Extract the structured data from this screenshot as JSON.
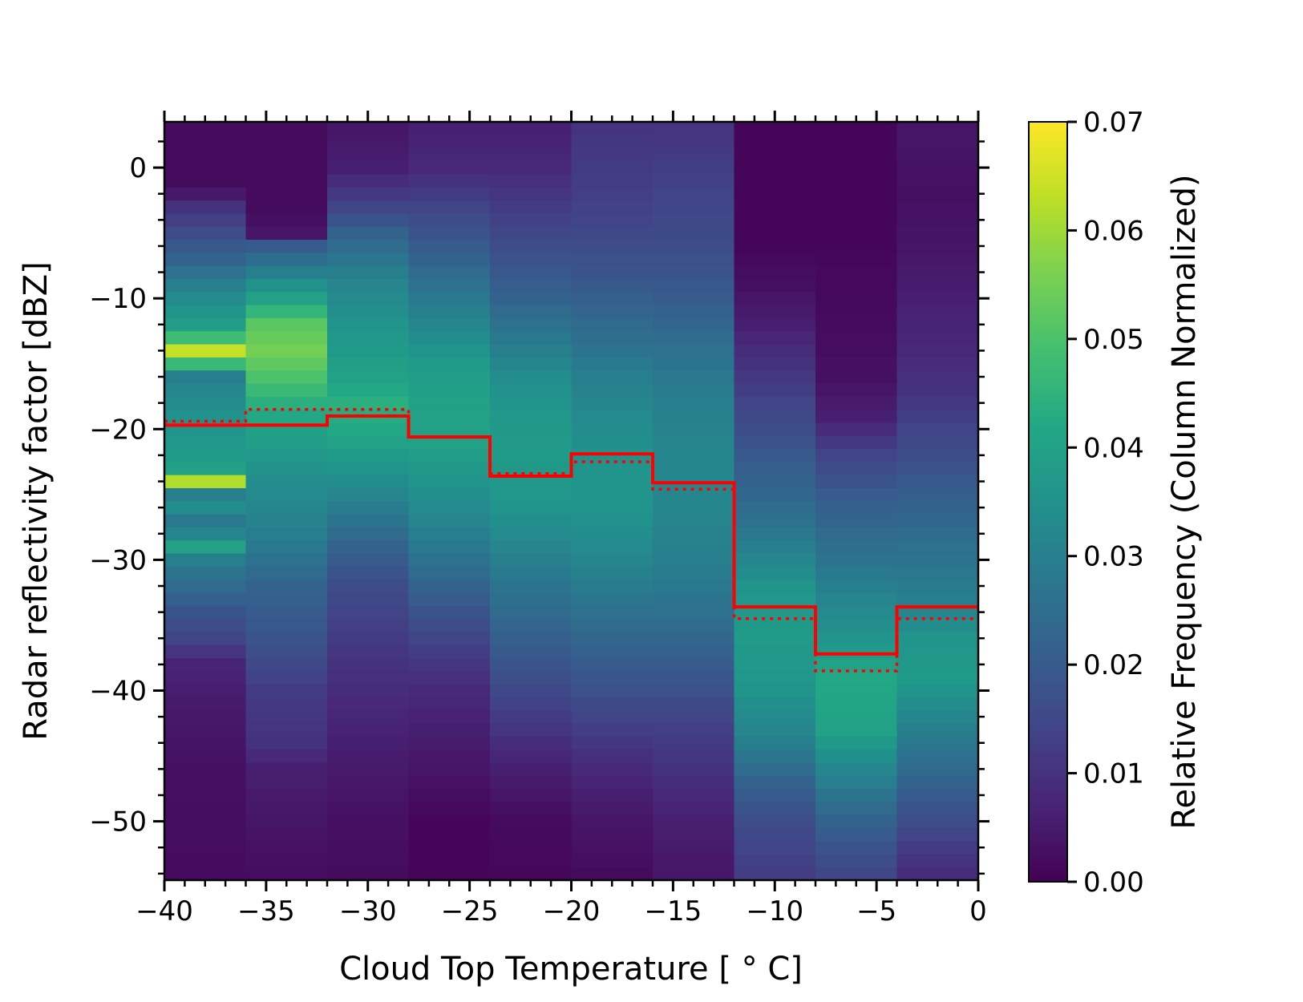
{
  "chart_data": {
    "type": "heatmap",
    "xlabel": "Cloud Top Temperature [$^\\circ$C]",
    "xlabel_display": "Cloud Top Temperature [ ° C]",
    "ylabel": "Radar reflectivity factor [dBZ]",
    "colorbar_label": "Relative Frequency (Column Normalized)",
    "colormap": "viridis",
    "xlim": [
      -40,
      0
    ],
    "ylim": [
      -54.5,
      3.5
    ],
    "x_ticks": [
      -40,
      -35,
      -30,
      -25,
      -20,
      -15,
      -10,
      -5,
      0
    ],
    "x_tick_labels": [
      "−40",
      "−35",
      "−30",
      "−25",
      "−20",
      "−15",
      "−10",
      "−5",
      "0"
    ],
    "y_ticks": [
      -50,
      -40,
      -30,
      -20,
      -10,
      0
    ],
    "y_tick_labels": [
      "−50",
      "−40",
      "−30",
      "−20",
      "−10",
      "0"
    ],
    "colorbar_range": [
      0.0,
      0.07
    ],
    "colorbar_ticks": [
      0.0,
      0.01,
      0.02,
      0.03,
      0.04,
      0.05,
      0.06,
      0.07
    ],
    "colorbar_tick_labels": [
      "0.00",
      "0.01",
      "0.02",
      "0.03",
      "0.04",
      "0.05",
      "0.07"
    ],
    "colorbar_tick_labels_full": [
      "0.00",
      "0.01",
      "0.02",
      "0.03",
      "0.04",
      "0.05",
      "0.06",
      "0.07"
    ],
    "x_bin_edges": [
      -40,
      -36,
      -32,
      -28,
      -24,
      -20,
      -16,
      -12,
      -8,
      -4,
      0
    ],
    "y_bin_edges_start": -54.5,
    "y_bin_width": 1,
    "columns": [
      {
        "x_range": [
          -40,
          -36
        ],
        "profile": [
          [
            -54.5,
            0.002
          ],
          [
            -46,
            0.003
          ],
          [
            -41,
            0.005
          ],
          [
            -38,
            0.007
          ],
          [
            -36,
            0.014
          ],
          [
            -34,
            0.018
          ],
          [
            -32,
            0.024
          ],
          [
            -30,
            0.03
          ],
          [
            -29,
            0.04
          ],
          [
            -28,
            0.032
          ],
          [
            -27,
            0.028
          ],
          [
            -26,
            0.034
          ],
          [
            -25,
            0.03
          ],
          [
            -24,
            0.062
          ],
          [
            -23,
            0.04
          ],
          [
            -22,
            0.038
          ],
          [
            -20,
            0.036
          ],
          [
            -18,
            0.034
          ],
          [
            -16,
            0.03
          ],
          [
            -14,
            0.064
          ],
          [
            -12.5,
            0.04
          ],
          [
            -11,
            0.036
          ],
          [
            -9,
            0.03
          ],
          [
            -7,
            0.022
          ],
          [
            -5,
            0.016
          ],
          [
            -3,
            0.01
          ],
          [
            -1.5,
            0.002
          ],
          [
            3.5,
            0.002
          ]
        ]
      },
      {
        "x_range": [
          -36,
          -32
        ],
        "profile": [
          [
            -54.5,
            0.002
          ],
          [
            -46,
            0.006
          ],
          [
            -44,
            0.01
          ],
          [
            -40,
            0.012
          ],
          [
            -36,
            0.018
          ],
          [
            -32,
            0.022
          ],
          [
            -28,
            0.03
          ],
          [
            -24,
            0.034
          ],
          [
            -20,
            0.04
          ],
          [
            -18,
            0.044
          ],
          [
            -16,
            0.05
          ],
          [
            -14,
            0.055
          ],
          [
            -12,
            0.052
          ],
          [
            -10,
            0.04
          ],
          [
            -8,
            0.03
          ],
          [
            -6,
            0.02
          ],
          [
            -5,
            0.004
          ],
          [
            -3,
            0.002
          ],
          [
            3.5,
            0.002
          ]
        ]
      },
      {
        "x_range": [
          -32,
          -28
        ],
        "profile": [
          [
            -54.5,
            0.002
          ],
          [
            -50,
            0.003
          ],
          [
            -44,
            0.006
          ],
          [
            -38,
            0.01
          ],
          [
            -32,
            0.016
          ],
          [
            -28,
            0.024
          ],
          [
            -24,
            0.034
          ],
          [
            -20,
            0.042
          ],
          [
            -18,
            0.044
          ],
          [
            -16,
            0.04
          ],
          [
            -12,
            0.036
          ],
          [
            -8,
            0.03
          ],
          [
            -5,
            0.022
          ],
          [
            -3,
            0.014
          ],
          [
            0,
            0.006
          ],
          [
            3.5,
            0.004
          ]
        ]
      },
      {
        "x_range": [
          -28,
          -24
        ],
        "profile": [
          [
            -54.5,
            0.001
          ],
          [
            -50,
            0.001
          ],
          [
            -46,
            0.004
          ],
          [
            -40,
            0.008
          ],
          [
            -36,
            0.014
          ],
          [
            -32,
            0.022
          ],
          [
            -28,
            0.03
          ],
          [
            -24,
            0.036
          ],
          [
            -21,
            0.04
          ],
          [
            -18,
            0.04
          ],
          [
            -15,
            0.038
          ],
          [
            -12,
            0.032
          ],
          [
            -9,
            0.026
          ],
          [
            -6,
            0.02
          ],
          [
            -3,
            0.014
          ],
          [
            0,
            0.008
          ],
          [
            3.5,
            0.006
          ]
        ]
      },
      {
        "x_range": [
          -24,
          -20
        ],
        "profile": [
          [
            -54.5,
            0.001
          ],
          [
            -50,
            0.002
          ],
          [
            -46,
            0.006
          ],
          [
            -42,
            0.012
          ],
          [
            -38,
            0.018
          ],
          [
            -34,
            0.024
          ],
          [
            -30,
            0.03
          ],
          [
            -26,
            0.036
          ],
          [
            -22,
            0.038
          ],
          [
            -19,
            0.037
          ],
          [
            -16,
            0.034
          ],
          [
            -13,
            0.028
          ],
          [
            -10,
            0.022
          ],
          [
            -6,
            0.016
          ],
          [
            -3,
            0.012
          ],
          [
            0,
            0.008
          ],
          [
            3.5,
            0.006
          ]
        ]
      },
      {
        "x_range": [
          -20,
          -16
        ],
        "profile": [
          [
            -54.5,
            0.002
          ],
          [
            -50,
            0.004
          ],
          [
            -46,
            0.008
          ],
          [
            -42,
            0.014
          ],
          [
            -38,
            0.02
          ],
          [
            -34,
            0.026
          ],
          [
            -30,
            0.032
          ],
          [
            -26,
            0.036
          ],
          [
            -23,
            0.036
          ],
          [
            -20,
            0.034
          ],
          [
            -16,
            0.03
          ],
          [
            -12,
            0.024
          ],
          [
            -8,
            0.018
          ],
          [
            -4,
            0.014
          ],
          [
            0,
            0.012
          ],
          [
            3.5,
            0.01
          ]
        ]
      },
      {
        "x_range": [
          -16,
          -12
        ],
        "profile": [
          [
            -54.5,
            0.004
          ],
          [
            -50,
            0.006
          ],
          [
            -46,
            0.01
          ],
          [
            -42,
            0.014
          ],
          [
            -38,
            0.02
          ],
          [
            -34,
            0.026
          ],
          [
            -30,
            0.03
          ],
          [
            -26,
            0.032
          ],
          [
            -22,
            0.032
          ],
          [
            -18,
            0.03
          ],
          [
            -14,
            0.026
          ],
          [
            -10,
            0.02
          ],
          [
            -6,
            0.016
          ],
          [
            -2,
            0.014
          ],
          [
            1,
            0.012
          ],
          [
            3.5,
            0.01
          ]
        ]
      },
      {
        "x_range": [
          -12,
          -8
        ],
        "profile": [
          [
            -54.5,
            0.012
          ],
          [
            -50,
            0.016
          ],
          [
            -47,
            0.022
          ],
          [
            -44,
            0.03
          ],
          [
            -40,
            0.036
          ],
          [
            -36,
            0.038
          ],
          [
            -32,
            0.036
          ],
          [
            -30,
            0.032
          ],
          [
            -27,
            0.026
          ],
          [
            -24,
            0.022
          ],
          [
            -21,
            0.018
          ],
          [
            -18,
            0.014
          ],
          [
            -15,
            0.01
          ],
          [
            -12,
            0.006
          ],
          [
            -9,
            0.003
          ],
          [
            -6,
            0.001
          ],
          [
            3.5,
            0.001
          ]
        ]
      },
      {
        "x_range": [
          -8,
          -4
        ],
        "profile": [
          [
            -54.5,
            0.014
          ],
          [
            -52,
            0.018
          ],
          [
            -49,
            0.024
          ],
          [
            -46,
            0.032
          ],
          [
            -43,
            0.04
          ],
          [
            -39,
            0.042
          ],
          [
            -36,
            0.036
          ],
          [
            -32,
            0.03
          ],
          [
            -28,
            0.024
          ],
          [
            -25,
            0.02
          ],
          [
            -22,
            0.014
          ],
          [
            -19,
            0.006
          ],
          [
            -16,
            0.003
          ],
          [
            -12,
            0.002
          ],
          [
            -6,
            0.001
          ],
          [
            3.5,
            0.001
          ]
        ]
      },
      {
        "x_range": [
          -4,
          0
        ],
        "profile": [
          [
            -54.5,
            0.008
          ],
          [
            -51,
            0.014
          ],
          [
            -48,
            0.02
          ],
          [
            -45,
            0.026
          ],
          [
            -42,
            0.032
          ],
          [
            -39,
            0.038
          ],
          [
            -36,
            0.036
          ],
          [
            -33,
            0.03
          ],
          [
            -29,
            0.026
          ],
          [
            -26,
            0.022
          ],
          [
            -23,
            0.018
          ],
          [
            -20,
            0.014
          ],
          [
            -17,
            0.01
          ],
          [
            -14,
            0.008
          ],
          [
            -10,
            0.006
          ],
          [
            -6,
            0.004
          ],
          [
            -2,
            0.003
          ],
          [
            2,
            0.004
          ],
          [
            3.5,
            0.004
          ]
        ]
      }
    ],
    "series": [
      {
        "style": "solid",
        "color": "#ff0000",
        "x_edges": [
          -40,
          -36,
          -32,
          -28,
          -24,
          -20,
          -16,
          -12,
          -8,
          -4,
          0
        ],
        "values": [
          -19.7,
          -19.7,
          -19.0,
          -20.6,
          -23.6,
          -21.9,
          -24.1,
          -33.6,
          -37.2,
          -33.6
        ]
      },
      {
        "style": "dotted",
        "color": "#ff0000",
        "x_edges": [
          -40,
          -36,
          -32,
          -28,
          -24,
          -20,
          -16,
          -12,
          -8,
          -4,
          0
        ],
        "values": [
          -19.4,
          -18.5,
          -18.5,
          -20.6,
          -23.4,
          -22.5,
          -24.6,
          -34.5,
          -38.5,
          -34.5
        ]
      }
    ]
  }
}
